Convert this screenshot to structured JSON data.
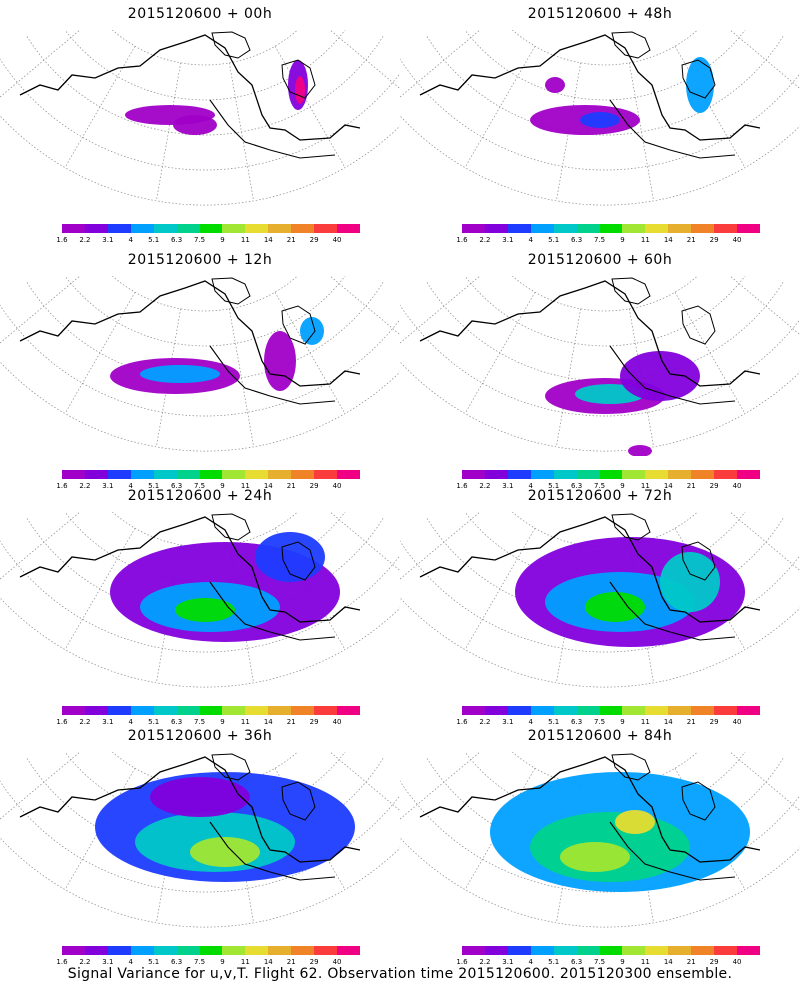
{
  "colorbar": {
    "colors": [
      "#a000c8",
      "#8200dc",
      "#1e3cff",
      "#00a0ff",
      "#00c8c8",
      "#00d28c",
      "#00dc00",
      "#a0e632",
      "#e6dc32",
      "#e6af2d",
      "#f08228",
      "#fa3c3c",
      "#f00082"
    ],
    "labels": [
      "1.6",
      "2.2",
      "3.1",
      "4",
      "5.1",
      "6.3",
      "7.5",
      "9",
      "11",
      "14",
      "21",
      "29",
      "40"
    ]
  },
  "panels": [
    {
      "id": "p00",
      "title": "2015120600 + 00h",
      "level": 0
    },
    {
      "id": "p48",
      "title": "2015120600 + 48h",
      "level": 3
    },
    {
      "id": "p12",
      "title": "2015120600 + 12h",
      "level": 1
    },
    {
      "id": "p60",
      "title": "2015120600 + 60h",
      "level": 3
    },
    {
      "id": "p24",
      "title": "2015120600 + 24h",
      "level": 1
    },
    {
      "id": "p72",
      "title": "2015120600 + 72h",
      "level": 4
    },
    {
      "id": "p36",
      "title": "2015120600 + 36h",
      "level": 2
    },
    {
      "id": "p84",
      "title": "2015120600 + 84h",
      "level": 4
    }
  ],
  "footer": "Signal Variance for u,v,T. Flight 62. Observation time 2015120600. 2015120300 ensemble."
}
